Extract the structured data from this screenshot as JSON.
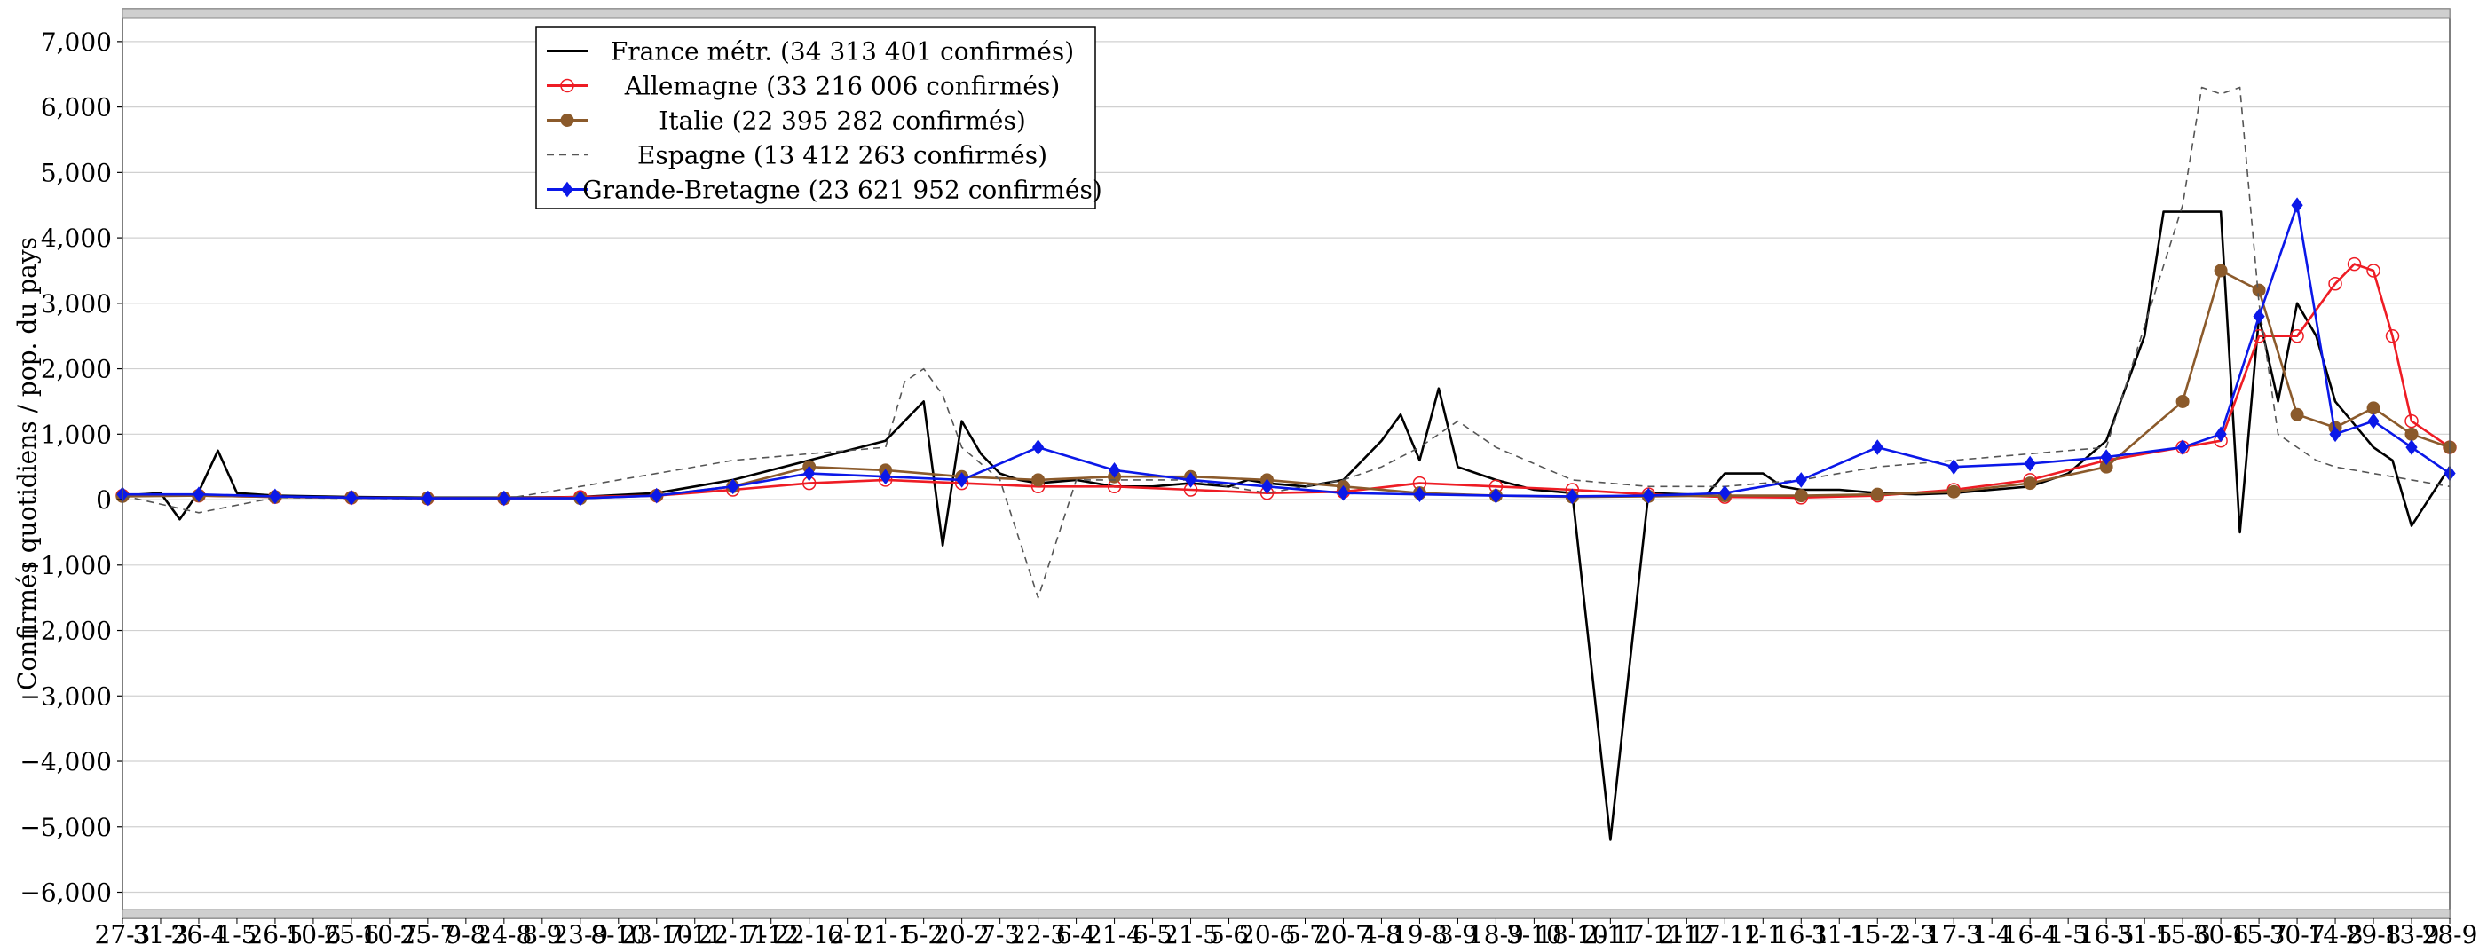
{
  "chart_data": {
    "type": "line",
    "title": "",
    "xlabel": "",
    "ylabel": "Confirmés quotidiens / pop. du pays",
    "ylim": [
      -6400,
      7500
    ],
    "yticks": [
      -6000,
      -5000,
      -4000,
      -3000,
      -2000,
      -1000,
      0,
      1000,
      2000,
      3000,
      4000,
      5000,
      6000,
      7000
    ],
    "ytick_labels": [
      "−6,000",
      "−5,000",
      "−4,000",
      "−3,000",
      "−2,000",
      "−1,000",
      "0",
      "1,000",
      "2,000",
      "3,000",
      "4,000",
      "5,000",
      "6,000",
      "7,000"
    ],
    "xtick_labels": [
      "27-3",
      "31-3",
      "26-4",
      "1-5",
      "26-5",
      "10-6",
      "25-6",
      "10-7",
      "25-7",
      "9-8",
      "24-8",
      "8-9",
      "23-9",
      "8-10",
      "23-10",
      "7-11",
      "22-11",
      "7-12",
      "22-12",
      "6-1",
      "21-1",
      "5-2",
      "20-2",
      "7-3",
      "22-3",
      "6-4",
      "21-4",
      "6-5",
      "21-5",
      "5-6",
      "20-6",
      "5-7",
      "20-7",
      "4-8",
      "19-8",
      "3-9",
      "18-9",
      "3-10",
      "18-10",
      "2-11",
      "17-11",
      "2-12",
      "17-12",
      "1-1",
      "16-1",
      "31-1",
      "15-2",
      "2-3",
      "17-3",
      "1-4",
      "16-4",
      "1-5",
      "16-5",
      "31-5",
      "15-6",
      "30-6",
      "15-7",
      "30-7",
      "14-8",
      "29-8",
      "13-9",
      "28-9"
    ],
    "grid": true,
    "legend_position": "top-left",
    "series": [
      {
        "name": "France métr. (34 313 401 confirmés)",
        "color": "#000000",
        "style": "solid",
        "marker": "none",
        "x": [
          0,
          1,
          1.5,
          2,
          2.5,
          3,
          4,
          6,
          8,
          10,
          12,
          14,
          16,
          18,
          20,
          21,
          21.5,
          22,
          22.5,
          23,
          23.5,
          24,
          25,
          26,
          27,
          28,
          29,
          29.5,
          30,
          31,
          32,
          33,
          33.5,
          34,
          34.5,
          35,
          36,
          37,
          38,
          39,
          40,
          41,
          41.5,
          42,
          43,
          43.5,
          44,
          45,
          46,
          47,
          48,
          49,
          50,
          51,
          52,
          53,
          53.5,
          54,
          54.5,
          55,
          55.5,
          56,
          56.5,
          57,
          57.5,
          58,
          59,
          59.5,
          60,
          61
        ],
        "y": [
          60,
          100,
          -300,
          120,
          750,
          100,
          60,
          40,
          30,
          30,
          40,
          100,
          300,
          600,
          900,
          1500,
          -700,
          1200,
          700,
          400,
          300,
          250,
          300,
          200,
          200,
          250,
          200,
          300,
          250,
          200,
          300,
          900,
          1300,
          600,
          1700,
          500,
          300,
          150,
          100,
          -5200,
          100,
          80,
          60,
          400,
          400,
          200,
          150,
          150,
          100,
          80,
          100,
          150,
          200,
          400,
          900,
          2500,
          4400,
          4400,
          4400,
          4400,
          -500,
          2800,
          1500,
          3000,
          2500,
          1500,
          800,
          600,
          -400,
          500
        ]
      },
      {
        "name": "Allemagne (33 216 006 confirmés)",
        "color": "#ee1c24",
        "style": "solid",
        "marker": "circle-open",
        "x": [
          0,
          2,
          4,
          6,
          8,
          10,
          12,
          14,
          16,
          18,
          20,
          22,
          24,
          26,
          28,
          30,
          32,
          34,
          36,
          38,
          40,
          42,
          44,
          46,
          48,
          50,
          52,
          54,
          55,
          56,
          57,
          58,
          58.5,
          59,
          59.5,
          60,
          61
        ],
        "y": [
          60,
          60,
          40,
          30,
          20,
          20,
          40,
          60,
          150,
          250,
          300,
          250,
          200,
          200,
          150,
          100,
          120,
          250,
          200,
          150,
          80,
          40,
          30,
          60,
          150,
          300,
          600,
          800,
          900,
          2500,
          2500,
          3300,
          3600,
          3500,
          2500,
          1200,
          800
        ]
      },
      {
        "name": "Italie (22 395 282 confirmés)",
        "color": "#8b5a2b",
        "style": "solid",
        "marker": "circle-filled",
        "x": [
          0,
          2,
          4,
          6,
          8,
          10,
          12,
          14,
          16,
          18,
          20,
          22,
          24,
          26,
          28,
          30,
          32,
          34,
          36,
          38,
          40,
          42,
          44,
          46,
          48,
          50,
          52,
          54,
          55,
          56,
          57,
          58,
          59,
          60,
          61
        ],
        "y": [
          50,
          60,
          40,
          30,
          20,
          20,
          20,
          60,
          200,
          500,
          450,
          350,
          300,
          350,
          350,
          300,
          200,
          100,
          60,
          40,
          50,
          60,
          60,
          80,
          120,
          250,
          500,
          1500,
          3500,
          3200,
          1300,
          1100,
          1400,
          1000,
          800
        ]
      },
      {
        "name": "Espagne (13 412 263 confirmés)",
        "color": "#555555",
        "style": "dashed",
        "marker": "none",
        "x": [
          0,
          2,
          4,
          6,
          8,
          10,
          12,
          14,
          16,
          18,
          20,
          20.5,
          21,
          21.5,
          22,
          23,
          24,
          25,
          26,
          27,
          28,
          29,
          30,
          31,
          32,
          33,
          34,
          35,
          36,
          38,
          40,
          42,
          44,
          46,
          48,
          50,
          52,
          54,
          54.5,
          55,
          55.5,
          56,
          56.5,
          57,
          57.5,
          58,
          59,
          60,
          61
        ],
        "y": [
          60,
          -200,
          30,
          20,
          10,
          10,
          200,
          400,
          600,
          700,
          800,
          1800,
          2000,
          1600,
          800,
          300,
          -1500,
          300,
          300,
          300,
          300,
          200,
          100,
          200,
          300,
          500,
          800,
          1200,
          800,
          300,
          200,
          200,
          300,
          500,
          600,
          700,
          800,
          4500,
          6300,
          6200,
          6300,
          3000,
          1000,
          800,
          600,
          500,
          400,
          300,
          200
        ]
      },
      {
        "name": "Grande-Bretagne (23 621 952 confirmés)",
        "color": "#0b18e8",
        "style": "solid",
        "marker": "diamond-filled",
        "x": [
          0,
          2,
          4,
          6,
          8,
          10,
          12,
          14,
          16,
          18,
          20,
          22,
          24,
          26,
          28,
          30,
          32,
          34,
          36,
          38,
          40,
          42,
          44,
          46,
          48,
          50,
          52,
          54,
          55,
          56,
          57,
          58,
          59,
          60,
          61
        ],
        "y": [
          80,
          80,
          50,
          30,
          20,
          20,
          20,
          60,
          200,
          400,
          350,
          300,
          800,
          450,
          300,
          200,
          100,
          80,
          60,
          50,
          60,
          100,
          300,
          800,
          500,
          550,
          650,
          800,
          1000,
          2800,
          4500,
          1000,
          1200,
          800,
          400
        ]
      }
    ]
  }
}
